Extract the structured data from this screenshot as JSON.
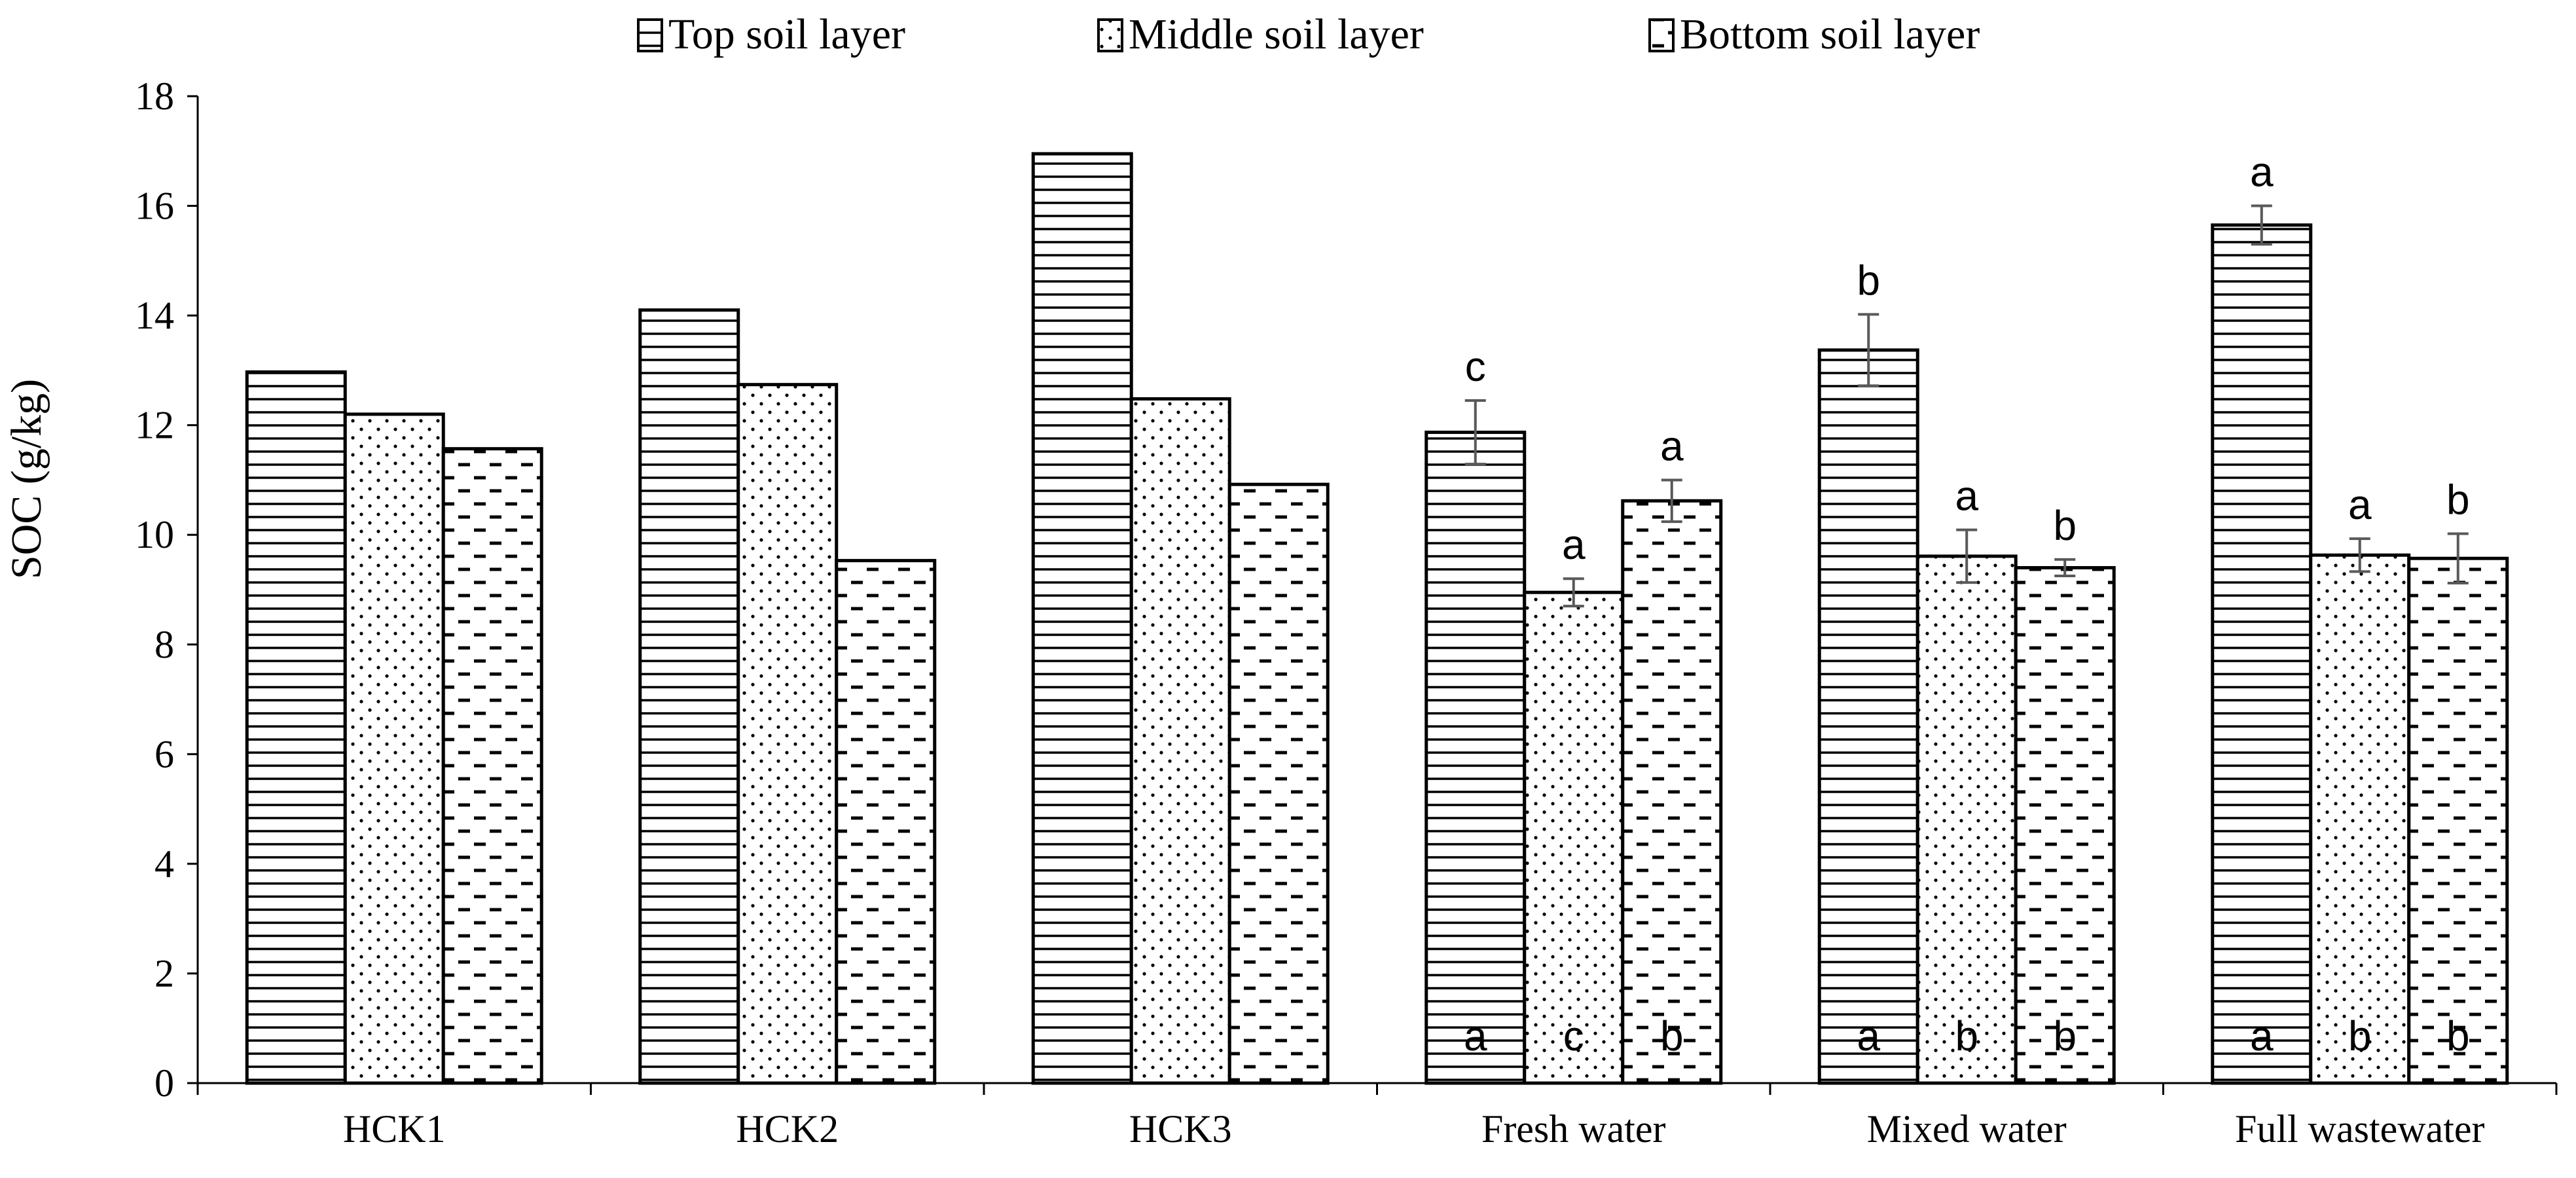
{
  "chart_data": {
    "type": "bar",
    "title": "",
    "xlabel": "",
    "ylabel": "SOC (g/kg)",
    "ylim": [
      0,
      18
    ],
    "yticks": [
      0,
      2,
      4,
      6,
      8,
      10,
      12,
      14,
      16,
      18
    ],
    "grid": false,
    "legend_position": "top",
    "categories": [
      "HCK1",
      "HCK2",
      "HCK3",
      "Fresh water",
      "Mixed water",
      "Full wastewater"
    ],
    "series": [
      {
        "name": "Top soil layer",
        "pattern": "horizontal-lines",
        "values": [
          12.97,
          14.1,
          16.95,
          11.87,
          13.37,
          15.65
        ],
        "errors": [
          0.03,
          0.03,
          0.04,
          0.58,
          0.65,
          0.35
        ],
        "letters_top": [
          "",
          "",
          "",
          "c",
          "b",
          "a"
        ],
        "letters_bottom": [
          "",
          "",
          "",
          "a",
          "a",
          "a"
        ]
      },
      {
        "name": "Middle soil layer",
        "pattern": "dots",
        "values": [
          12.2,
          12.74,
          12.48,
          8.95,
          9.61,
          9.63
        ],
        "errors": [
          0.02,
          0.02,
          0.02,
          0.25,
          0.48,
          0.3
        ],
        "letters_top": [
          "",
          "",
          "",
          "a",
          "a",
          "a"
        ],
        "letters_bottom": [
          "",
          "",
          "",
          "c",
          "b",
          "b"
        ]
      },
      {
        "name": "Bottom soil layer",
        "pattern": "dashes",
        "values": [
          11.57,
          9.53,
          10.92,
          10.62,
          9.4,
          9.57
        ],
        "errors": [
          0.02,
          0.02,
          0.02,
          0.38,
          0.15,
          0.45
        ],
        "letters_top": [
          "",
          "",
          "",
          "a",
          "b",
          "b"
        ],
        "letters_bottom": [
          "",
          "",
          "",
          "b",
          "b",
          "b"
        ]
      }
    ]
  }
}
